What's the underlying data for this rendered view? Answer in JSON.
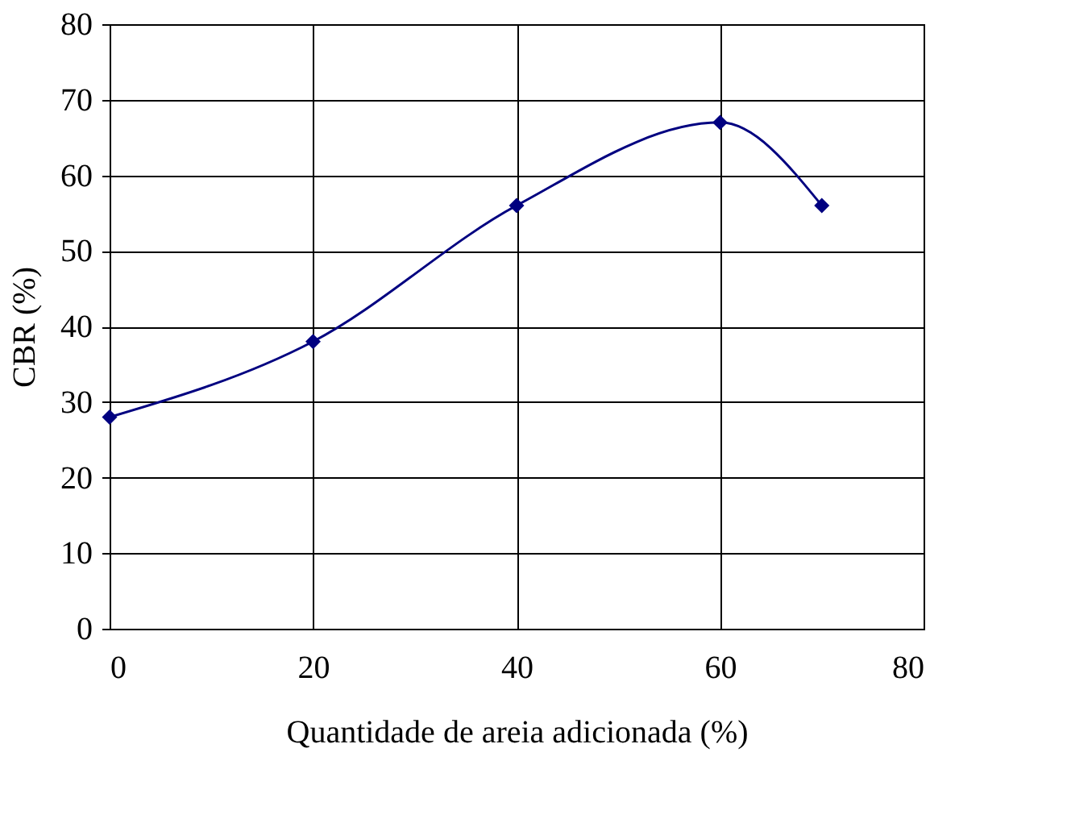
{
  "chart_data": {
    "type": "line",
    "xlabel": "Quantidade de areia adicionada (%)",
    "ylabel": "CBR (%)",
    "x": [
      0,
      20,
      40,
      60,
      70
    ],
    "series": [
      {
        "color": "#000080",
        "values": [
          28,
          38,
          56,
          67,
          56
        ]
      }
    ],
    "xlim": [
      0,
      80
    ],
    "xticks": [
      0,
      20,
      40,
      60,
      80
    ],
    "ylim": [
      0,
      80
    ],
    "yticks": [
      0,
      10,
      20,
      30,
      40,
      50,
      60,
      70,
      80
    ],
    "grid": true,
    "marker": "diamond",
    "line_style": "solid",
    "legend": false
  }
}
